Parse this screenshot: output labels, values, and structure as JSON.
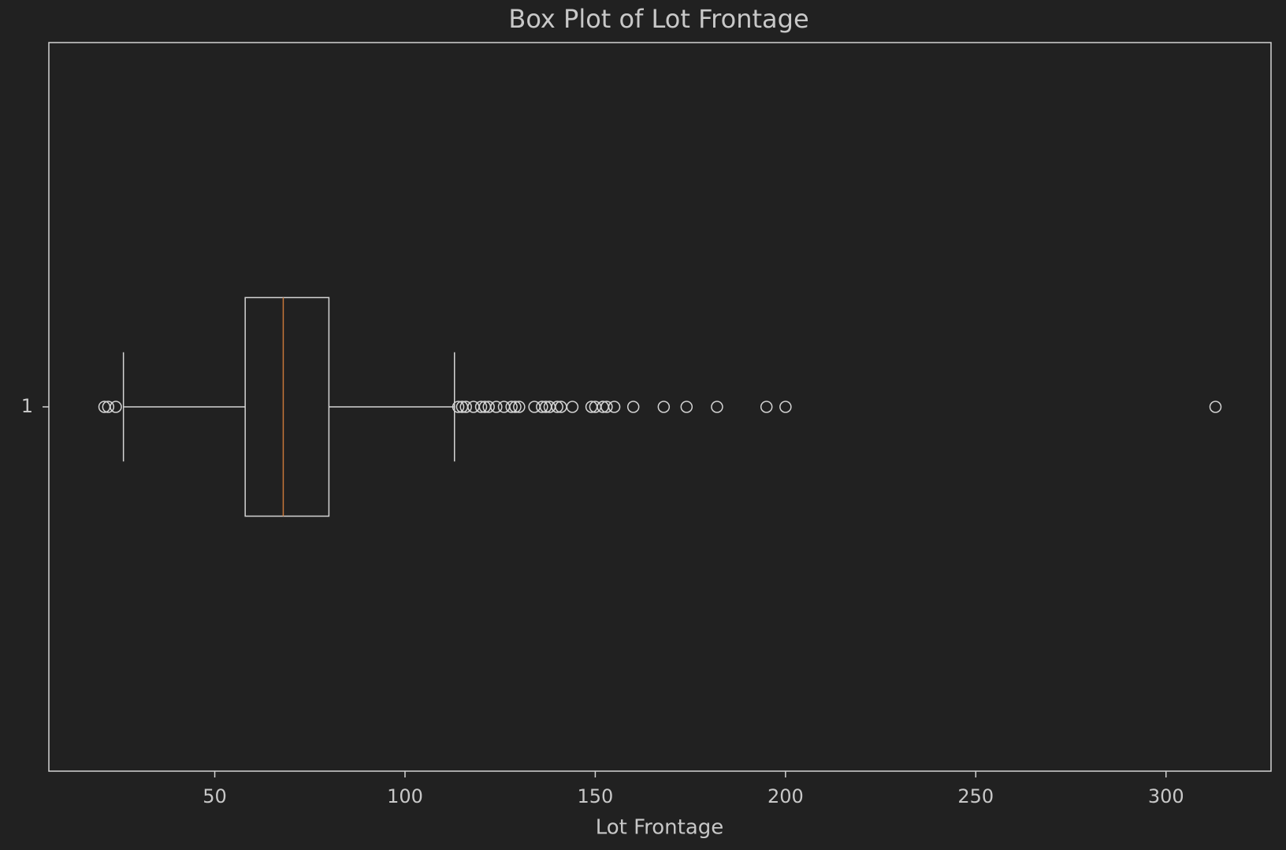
{
  "chart_data": {
    "type": "box",
    "orientation": "horizontal",
    "title": "Box Plot of Lot Frontage",
    "xlabel": "Lot Frontage",
    "categories": [
      "1"
    ],
    "boxes": [
      {
        "whisker_low": 26,
        "q1": 58,
        "median": 68,
        "q3": 80,
        "whisker_high": 113,
        "fliers": [
          21,
          22,
          24,
          114,
          115,
          116,
          118,
          120,
          121,
          122,
          124,
          126,
          128,
          129,
          130,
          134,
          136,
          137,
          138,
          140,
          141,
          144,
          149,
          150,
          152,
          153,
          155,
          160,
          168,
          174,
          182,
          195,
          200,
          313
        ]
      }
    ],
    "xlim": [
      6.4,
      327.6
    ],
    "xticks": [
      50,
      100,
      150,
      200,
      250,
      300
    ],
    "color": "#d4d4d4",
    "median_color": "#c8773a",
    "grid": false
  }
}
